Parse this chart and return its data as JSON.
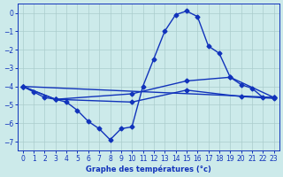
{
  "background_color": "#cceaea",
  "grid_color": "#aacccc",
  "line_color": "#1133bb",
  "marker": "D",
  "markersize": 2.5,
  "linewidth": 1.0,
  "main_series": {
    "x": [
      0,
      1,
      2,
      3,
      4,
      5,
      6,
      7,
      8,
      9,
      10,
      11,
      12,
      13,
      14,
      15,
      16,
      17,
      18,
      19,
      20,
      21,
      22,
      23
    ],
    "y": [
      -4.0,
      -4.3,
      -4.6,
      -4.7,
      -4.85,
      -5.3,
      -5.9,
      -6.3,
      -6.9,
      -6.3,
      -6.2,
      -4.0,
      -2.5,
      -1.0,
      -0.1,
      0.1,
      -0.2,
      -1.8,
      -2.2,
      -3.5,
      -3.9,
      -4.1,
      -4.6,
      -4.6
    ]
  },
  "line1": {
    "x": [
      0,
      23
    ],
    "y": [
      -4.0,
      -4.6
    ]
  },
  "line2": {
    "x": [
      0,
      3,
      10,
      15,
      19,
      23
    ],
    "y": [
      -4.0,
      -4.7,
      -4.4,
      -3.7,
      -3.5,
      -4.6
    ]
  },
  "line3": {
    "x": [
      0,
      3,
      10,
      15,
      20,
      23
    ],
    "y": [
      -4.0,
      -4.7,
      -4.85,
      -4.2,
      -4.55,
      -4.65
    ]
  },
  "xlim": [
    -0.5,
    23.5
  ],
  "ylim": [
    -7.5,
    0.5
  ],
  "xticks": [
    0,
    1,
    2,
    3,
    4,
    5,
    6,
    7,
    8,
    9,
    10,
    11,
    12,
    13,
    14,
    15,
    16,
    17,
    18,
    19,
    20,
    21,
    22,
    23
  ],
  "yticks": [
    0,
    -1,
    -2,
    -3,
    -4,
    -5,
    -6,
    -7
  ],
  "xlabel": "Graphe des températures (°c)",
  "figsize": [
    3.2,
    2.0
  ],
  "dpi": 100
}
